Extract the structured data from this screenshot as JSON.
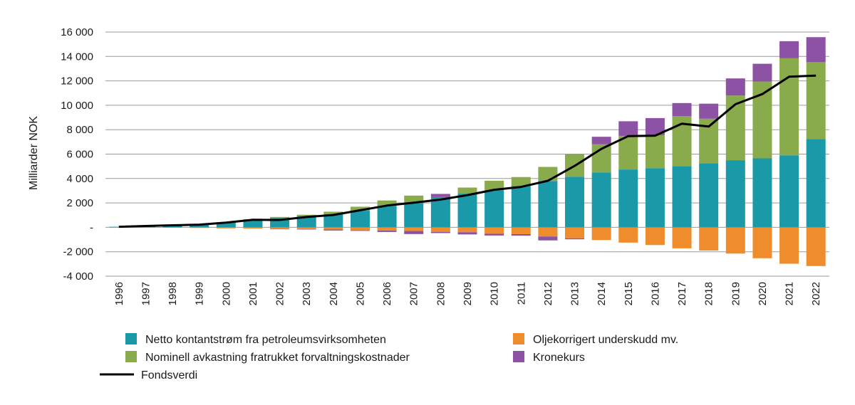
{
  "chart_data": {
    "type": "bar",
    "stacked": true,
    "ylabel": "Milliarder NOK",
    "ylim": [
      -4000,
      16000
    ],
    "yticks": [
      -4000,
      -2000,
      0,
      2000,
      4000,
      6000,
      8000,
      10000,
      12000,
      14000,
      16000
    ],
    "ytick_labels": [
      "-4 000",
      "-2 000",
      "-",
      "2 000",
      "4 000",
      "6 000",
      "8 000",
      "10 000",
      "12 000",
      "14 000",
      "16 000"
    ],
    "grid": true,
    "categories": [
      "1996",
      "1997",
      "1998",
      "1999",
      "2000",
      "2001",
      "2002",
      "2003",
      "2004",
      "2005",
      "2006",
      "2007",
      "2008",
      "2009",
      "2010",
      "2011",
      "2012",
      "2013",
      "2014",
      "2015",
      "2016",
      "2017",
      "2018",
      "2019",
      "2020",
      "2021",
      "2022"
    ],
    "series": [
      {
        "name": "Netto kontantstrøm fra petroleumsvirksomheten",
        "color": "#1a9aa8",
        "values": [
          48,
          110,
          160,
          220,
          380,
          610,
          760,
          920,
          1080,
          1360,
          1740,
          1980,
          2480,
          2760,
          3050,
          3400,
          3800,
          4150,
          4500,
          4740,
          4850,
          5020,
          5250,
          5500,
          5650,
          5900,
          7230
        ]
      },
      {
        "name": "Nominell avkastning fratrukket forvaltningskostnader",
        "color": "#8aab4b",
        "values": [
          0,
          0,
          20,
          30,
          40,
          50,
          90,
          110,
          200,
          330,
          460,
          620,
          0,
          500,
          770,
          720,
          1150,
          1850,
          2300,
          2750,
          2700,
          4100,
          3650,
          5300,
          6300,
          7950,
          6300
        ]
      },
      {
        "name": "Kronekurs",
        "color": "#8c52a3",
        "values": [
          0,
          0,
          0,
          0,
          0,
          0,
          0,
          0,
          0,
          0,
          0,
          0,
          260,
          0,
          0,
          0,
          0,
          0,
          620,
          1200,
          1400,
          1060,
          1230,
          1400,
          1450,
          1400,
          2050
        ]
      },
      {
        "name": "Oljekorrigert underskudd mv.",
        "color": "#ef8c2b",
        "values": [
          0,
          0,
          -30,
          -50,
          -80,
          -100,
          -130,
          -150,
          -180,
          -230,
          -270,
          -300,
          -370,
          -400,
          -530,
          -560,
          -750,
          -900,
          -1040,
          -1250,
          -1450,
          -1720,
          -1900,
          -2150,
          -2530,
          -2980,
          -3170
        ]
      },
      {
        "name": "Kronekurs negativ",
        "color": "#8c52a3",
        "values": [
          0,
          0,
          0,
          0,
          0,
          0,
          -30,
          -20,
          -80,
          -60,
          -110,
          -250,
          -100,
          -180,
          -140,
          -120,
          -320,
          -80,
          0,
          0,
          0,
          0,
          0,
          0,
          0,
          0,
          0
        ]
      }
    ],
    "line": {
      "name": "Fondsverdi",
      "color": "#000000",
      "values": [
        48,
        113,
        172,
        222,
        386,
        619,
        609,
        845,
        1016,
        1399,
        1784,
        2019,
        2275,
        2640,
        3077,
        3312,
        3816,
        5032,
        6431,
        7475,
        7510,
        8488,
        8256,
        10088,
        10914,
        12340,
        12429
      ]
    },
    "legend": [
      {
        "label": "Netto kontantstrøm fra petroleumsvirksomheten",
        "color": "#1a9aa8",
        "kind": "swatch"
      },
      {
        "label": "Oljekorrigert underskudd mv.",
        "color": "#ef8c2b",
        "kind": "swatch"
      },
      {
        "label": "Nominell avkastning fratrukket forvaltningskostnader",
        "color": "#8aab4b",
        "kind": "swatch"
      },
      {
        "label": "Kronekurs",
        "color": "#8c52a3",
        "kind": "swatch"
      },
      {
        "label": "Fondsverdi",
        "color": "#000000",
        "kind": "line"
      }
    ],
    "legend_position": "bottom"
  }
}
